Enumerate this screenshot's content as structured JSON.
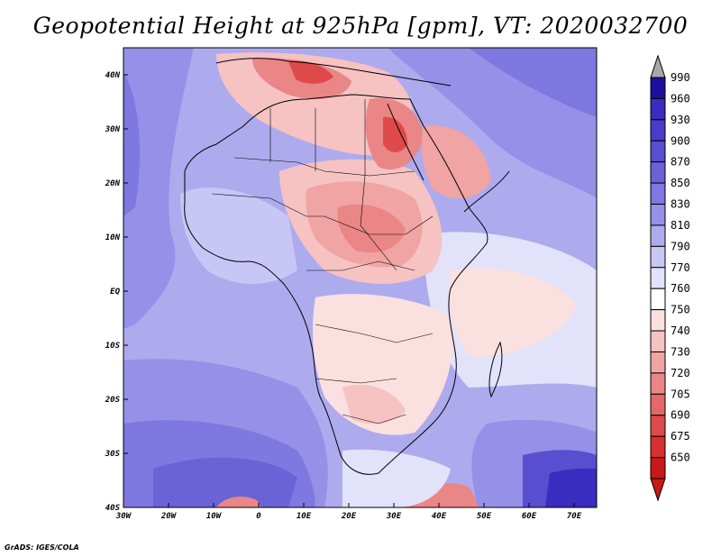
{
  "title": "Geopotential Height at 925hPa [gpm], VT: 2020032700",
  "credit": "GrADS: IGES/COLA",
  "map": {
    "region": "Africa",
    "lon_range": [
      -30,
      75
    ],
    "lat_range": [
      -40,
      45
    ],
    "lon_ticks": [
      "30W",
      "20W",
      "10W",
      "0",
      "10E",
      "20E",
      "30E",
      "40E",
      "50E",
      "60E",
      "70E"
    ],
    "lat_ticks": [
      "40N",
      "30N",
      "20N",
      "10N",
      "EQ",
      "10S",
      "20S",
      "30S",
      "40S"
    ]
  },
  "colorbar": {
    "levels": [
      "990",
      "960",
      "930",
      "900",
      "870",
      "850",
      "830",
      "810",
      "790",
      "770",
      "760",
      "750",
      "740",
      "730",
      "720",
      "705",
      "690",
      "675",
      "650"
    ],
    "colors": [
      "#1f0fa0",
      "#3a2cc0",
      "#4a3cc8",
      "#5a4ed0",
      "#6b62d8",
      "#7f78e0",
      "#9690e8",
      "#aeaaee",
      "#c8c6f4",
      "#e2e2fa",
      "#ffffff",
      "#fbe0e0",
      "#f6c2c2",
      "#f0a4a4",
      "#ea8686",
      "#e46868",
      "#de4a4a",
      "#d83030",
      "#c81818"
    ],
    "top_arrow_color": "#a8a8a8",
    "bottom_arrow_color": "#c81818"
  }
}
